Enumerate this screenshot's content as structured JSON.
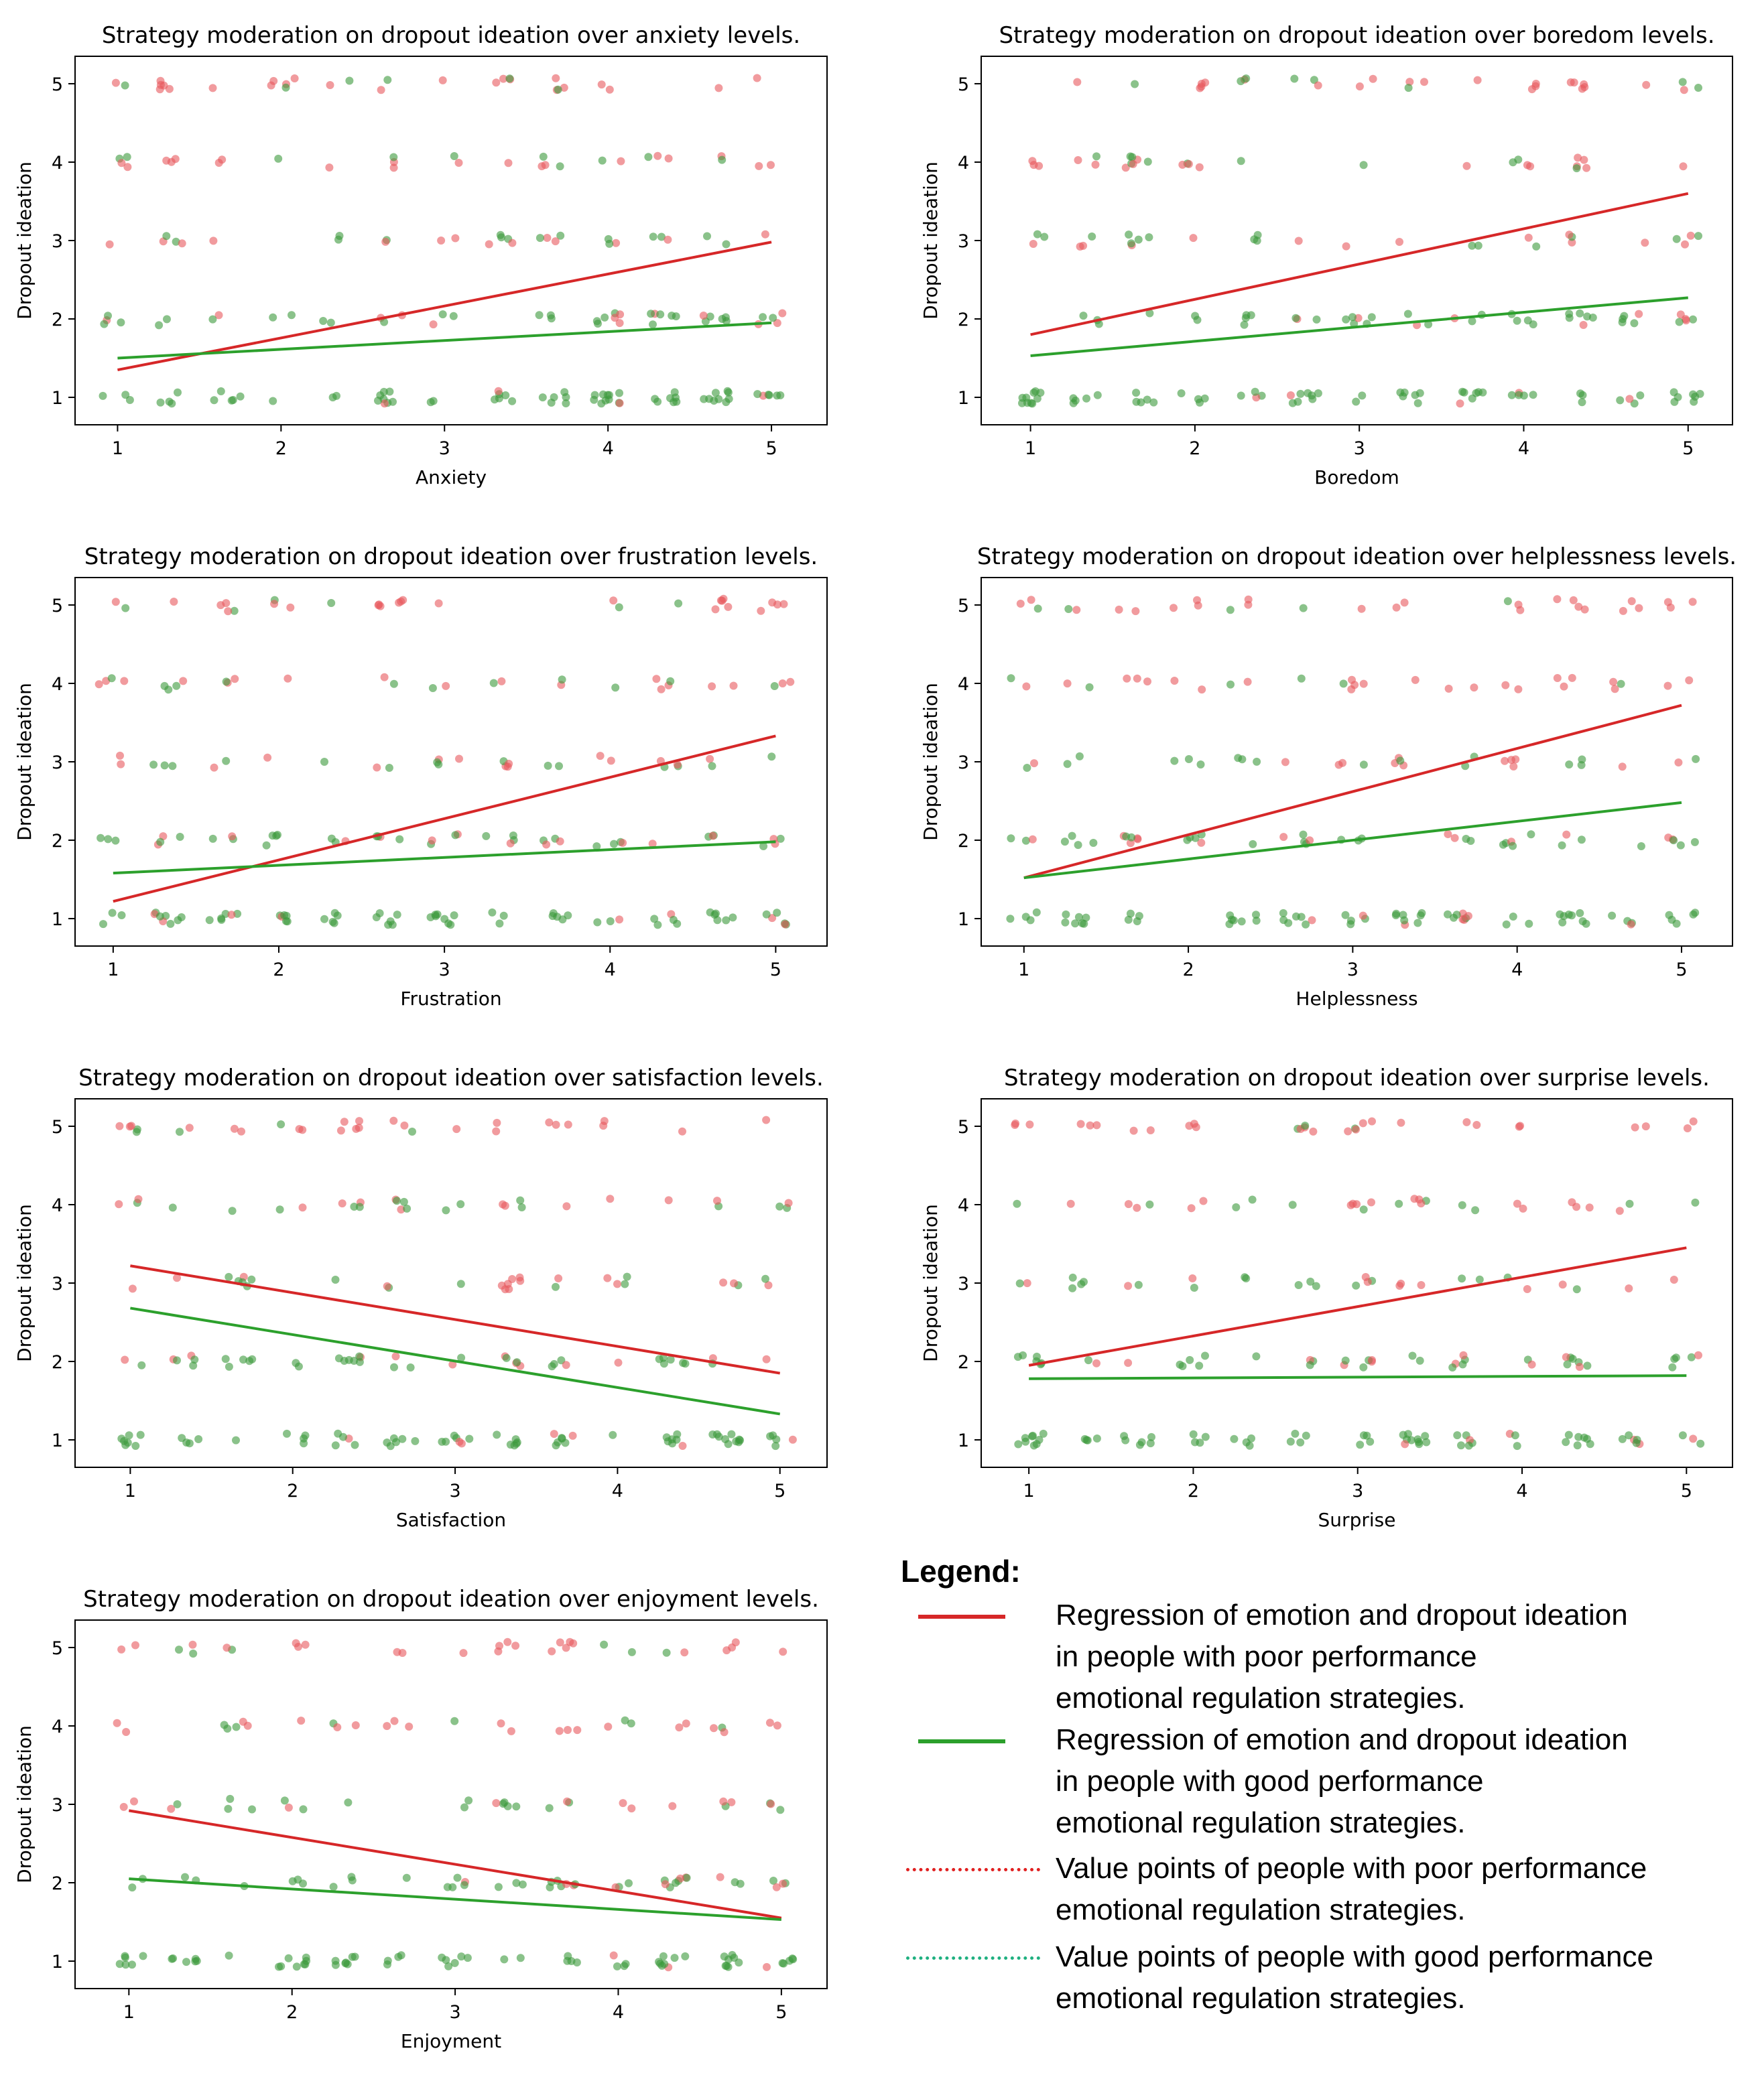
{
  "colors": {
    "poor": "#d62728",
    "good": "#2ca02c",
    "poor_point": "#e8595e",
    "good_point": "#3c9a3c",
    "axes": "#000000",
    "background": "#ffffff"
  },
  "chart_data": [
    {
      "type": "scatter",
      "title": "Strategy moderation on dropout ideation over anxiety levels.",
      "xlabel": "Anxiety",
      "ylabel": "Dropout ideation",
      "xlim": [
        0.74,
        5.34
      ],
      "ylim": [
        0.65,
        5.35
      ],
      "xticks": [
        "1",
        "2",
        "3",
        "4",
        "5"
      ],
      "yticks": [
        "1",
        "2",
        "3",
        "4",
        "5"
      ],
      "series": [
        {
          "name": "poor",
          "regression": [
            [
              1,
              1.35
            ],
            [
              5,
              2.98
            ]
          ]
        },
        {
          "name": "good",
          "regression": [
            [
              1,
              1.5
            ],
            [
              5,
              1.95
            ]
          ]
        }
      ]
    },
    {
      "type": "scatter",
      "title": "Strategy moderation on dropout ideation over boredom levels.",
      "xlabel": "Boredom",
      "ylabel": "Dropout ideation",
      "xlim": [
        0.7,
        5.27
      ],
      "ylim": [
        0.65,
        5.35
      ],
      "xticks": [
        "1",
        "2",
        "3",
        "4",
        "5"
      ],
      "yticks": [
        "1",
        "2",
        "3",
        "4",
        "5"
      ],
      "series": [
        {
          "name": "poor",
          "regression": [
            [
              1,
              1.8
            ],
            [
              5,
              3.6
            ]
          ]
        },
        {
          "name": "good",
          "regression": [
            [
              1,
              1.53
            ],
            [
              5,
              2.27
            ]
          ]
        }
      ]
    },
    {
      "type": "scatter",
      "title": "Strategy moderation on dropout ideation over frustration levels.",
      "xlabel": "Frustration",
      "ylabel": "Dropout ideation",
      "xlim": [
        0.77,
        5.31
      ],
      "ylim": [
        0.65,
        5.35
      ],
      "xticks": [
        "1",
        "2",
        "3",
        "4",
        "5"
      ],
      "yticks": [
        "1",
        "2",
        "3",
        "4",
        "5"
      ],
      "series": [
        {
          "name": "poor",
          "regression": [
            [
              1,
              1.22
            ],
            [
              5,
              3.33
            ]
          ]
        },
        {
          "name": "good",
          "regression": [
            [
              1,
              1.58
            ],
            [
              5,
              1.98
            ]
          ]
        }
      ]
    },
    {
      "type": "scatter",
      "title": "Strategy moderation on dropout ideation over helplessness levels.",
      "xlabel": "Helplessness",
      "ylabel": "Dropout ideation",
      "xlim": [
        0.74,
        5.31
      ],
      "ylim": [
        0.65,
        5.35
      ],
      "xticks": [
        "1",
        "2",
        "3",
        "4",
        "5"
      ],
      "yticks": [
        "1",
        "2",
        "3",
        "4",
        "5"
      ],
      "series": [
        {
          "name": "poor",
          "regression": [
            [
              1,
              1.52
            ],
            [
              5,
              3.72
            ]
          ]
        },
        {
          "name": "good",
          "regression": [
            [
              1,
              1.52
            ],
            [
              5,
              2.48
            ]
          ]
        }
      ]
    },
    {
      "type": "scatter",
      "title": "Strategy moderation on dropout ideation over satisfaction levels.",
      "xlabel": "Satisfaction",
      "ylabel": "Dropout ideation",
      "xlim": [
        0.66,
        5.29
      ],
      "ylim": [
        0.65,
        5.35
      ],
      "xticks": [
        "1",
        "2",
        "3",
        "4",
        "5"
      ],
      "yticks": [
        "1",
        "2",
        "3",
        "4",
        "5"
      ],
      "series": [
        {
          "name": "poor",
          "regression": [
            [
              1,
              3.22
            ],
            [
              5,
              1.85
            ]
          ]
        },
        {
          "name": "good",
          "regression": [
            [
              1,
              2.68
            ],
            [
              5,
              1.33
            ]
          ]
        }
      ]
    },
    {
      "type": "scatter",
      "title": "Strategy moderation on dropout ideation over surprise levels.",
      "xlabel": "Surprise",
      "ylabel": "Dropout ideation",
      "xlim": [
        0.71,
        5.28
      ],
      "ylim": [
        0.65,
        5.35
      ],
      "xticks": [
        "1",
        "2",
        "3",
        "4",
        "5"
      ],
      "yticks": [
        "1",
        "2",
        "3",
        "4",
        "5"
      ],
      "series": [
        {
          "name": "poor",
          "regression": [
            [
              1,
              1.95
            ],
            [
              5,
              3.45
            ]
          ]
        },
        {
          "name": "good",
          "regression": [
            [
              1,
              1.78
            ],
            [
              5,
              1.82
            ]
          ]
        }
      ]
    },
    {
      "type": "scatter",
      "title": "Strategy moderation on dropout ideation over enjoyment levels.",
      "xlabel": "Enjoyment",
      "ylabel": "Dropout ideation",
      "xlim": [
        0.67,
        5.28
      ],
      "ylim": [
        0.65,
        5.35
      ],
      "xticks": [
        "1",
        "2",
        "3",
        "4",
        "5"
      ],
      "yticks": [
        "1",
        "2",
        "3",
        "4",
        "5"
      ],
      "series": [
        {
          "name": "poor",
          "regression": [
            [
              1,
              2.92
            ],
            [
              5,
              1.55
            ]
          ]
        },
        {
          "name": "good",
          "regression": [
            [
              1,
              2.05
            ],
            [
              5,
              1.53
            ]
          ]
        }
      ]
    }
  ],
  "legend": {
    "title": "Legend:",
    "entries": [
      {
        "style": "solid",
        "color": "poor",
        "lines": [
          "Regression of emotion and dropout ideation",
          "in people with poor performance",
          "emotional regulation strategies."
        ]
      },
      {
        "style": "solid",
        "color": "good",
        "lines": [
          "Regression of emotion and dropout ideation",
          "in people with good performance",
          "emotional regulation strategies."
        ]
      },
      {
        "style": "dotted",
        "color": "poor",
        "lines": [
          "Value points of people with poor performance",
          "emotional regulation strategies."
        ]
      },
      {
        "style": "dotted",
        "color": "good",
        "lines": [
          "Value points of people with good performance",
          "emotional regulation strategies."
        ]
      }
    ]
  }
}
